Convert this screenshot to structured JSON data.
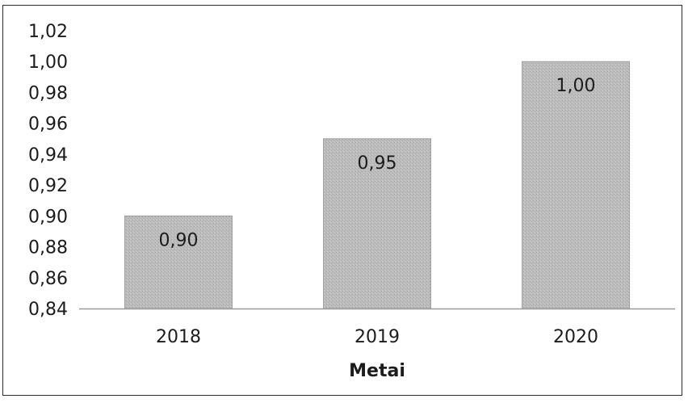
{
  "chart_data": {
    "type": "bar",
    "categories": [
      "2018",
      "2019",
      "2020"
    ],
    "values": [
      0.9,
      0.95,
      1.0
    ],
    "data_labels": [
      "0,90",
      "0,95",
      "1,00"
    ],
    "title": "",
    "xlabel": "Metai",
    "ylabel": "",
    "ylim": [
      0.84,
      1.02
    ],
    "y_ticks": [
      0.84,
      0.86,
      0.88,
      0.9,
      0.92,
      0.94,
      0.96,
      0.98,
      1.0,
      1.02
    ],
    "y_tick_labels": [
      "0,84",
      "0,86",
      "0,88",
      "0,90",
      "0,92",
      "0,94",
      "0,96",
      "0,98",
      "1,00",
      "1,02"
    ],
    "grid": false,
    "legend": "none",
    "colors": {
      "bar": "#b9b9b9",
      "axis": "#9a9a9a",
      "text": "#1c1c1c"
    }
  }
}
